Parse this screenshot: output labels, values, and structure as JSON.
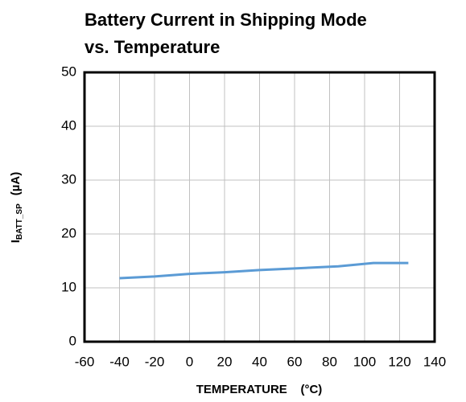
{
  "chart_data": {
    "type": "line",
    "title": [
      "Battery Current in Shipping Mode",
      "vs. Temperature"
    ],
    "x_label": "TEMPERATURE    (°C)",
    "y_label": [
      "I",
      "BATT_SP",
      "(µA)"
    ],
    "x": [
      -40,
      -20,
      0,
      20,
      40,
      60,
      85,
      105,
      125
    ],
    "series": [
      {
        "color": "#5b9bd5",
        "values": [
          11.8,
          12.1,
          12.6,
          12.9,
          13.3,
          13.6,
          14.0,
          14.6,
          14.6
        ]
      }
    ],
    "xlim": [
      -60,
      140
    ],
    "xticks": [
      -60,
      -40,
      -20,
      0,
      20,
      40,
      60,
      80,
      100,
      120,
      140
    ],
    "ylim": [
      0,
      50
    ],
    "yticks": [
      0,
      10,
      20,
      30,
      40,
      50
    ],
    "grid": true
  }
}
